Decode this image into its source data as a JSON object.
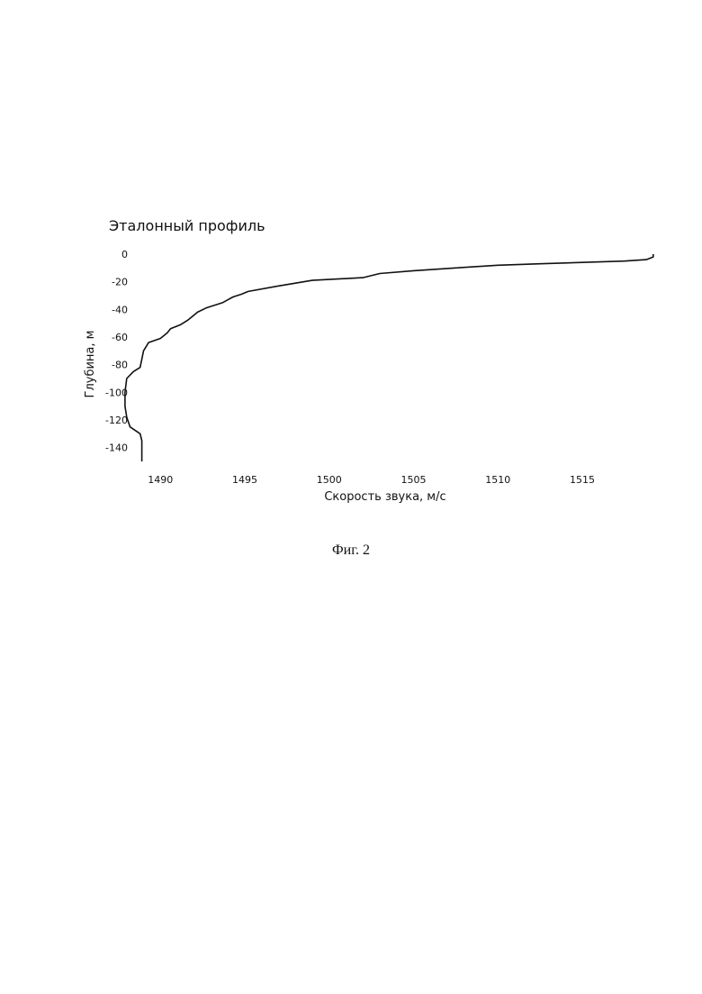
{
  "figure": {
    "caption": "Фиг. 2"
  },
  "chart_data": {
    "type": "line",
    "title": "Эталонный профиль",
    "xlabel": "Скорость звука, м/с",
    "ylabel": "Глубина, м",
    "xlim": [
      1487,
      1519
    ],
    "ylim": [
      -150,
      0
    ],
    "xticks": [
      1490,
      1495,
      1500,
      1505,
      1510,
      1515
    ],
    "yticks": [
      0,
      -20,
      -40,
      -60,
      -80,
      -100,
      -120,
      -140
    ],
    "grid": false,
    "line_color": "#111111",
    "series": [
      {
        "x": [
          1519.2,
          1519.2,
          1518.8,
          1517.5,
          1515.0,
          1512.5,
          1510.0,
          1507.5,
          1505.0,
          1503.0,
          1502.0,
          1499.0,
          1497.0,
          1495.2,
          1494.8,
          1494.3,
          1493.7,
          1492.7,
          1492.2,
          1491.9,
          1491.6,
          1491.2,
          1490.6,
          1490.4,
          1490.0,
          1489.3,
          1489.0,
          1488.8,
          1488.4,
          1488.0,
          1487.9,
          1487.9,
          1488.0,
          1488.2,
          1488.8,
          1488.9,
          1488.9
        ],
        "y": [
          0,
          -2,
          -4,
          -5,
          -6,
          -7,
          -8,
          -10,
          -12,
          -14,
          -17,
          -19,
          -23,
          -27,
          -29,
          -31,
          -35,
          -39,
          -42,
          -45,
          -48,
          -51,
          -54,
          -57,
          -61,
          -64,
          -70,
          -82,
          -85,
          -90,
          -100,
          -110,
          -118,
          -125,
          -130,
          -135,
          -150
        ]
      }
    ]
  }
}
